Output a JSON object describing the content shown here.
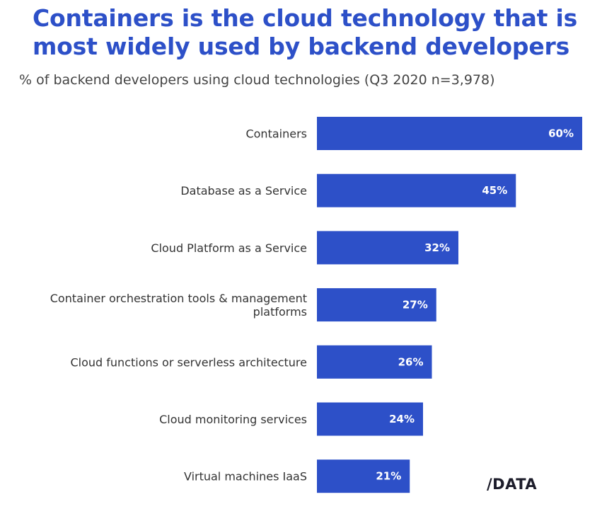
{
  "chart_data": {
    "type": "bar",
    "orientation": "horizontal",
    "title": "Containers is the cloud technology that is most widely used by backend developers",
    "subtitle": "% of backend developers using cloud technologies (Q3 2020 n=3,978)",
    "categories": [
      [
        "Containers"
      ],
      [
        "Database as a Service"
      ],
      [
        "Cloud Platform as a Service"
      ],
      [
        "Container orchestration tools & management",
        "platforms"
      ],
      [
        "Cloud functions or serverless architecture"
      ],
      [
        "Cloud monitoring services"
      ],
      [
        "Virtual machines IaaS"
      ]
    ],
    "values": [
      60,
      45,
      32,
      27,
      26,
      24,
      21
    ],
    "value_labels": [
      "60%",
      "45%",
      "32%",
      "27%",
      "26%",
      "24%",
      "21%"
    ],
    "xlim": [
      0,
      60
    ],
    "grid": false,
    "legend": "none",
    "bar_color": "#2d50c8"
  },
  "logo": {
    "text": "/DATA"
  }
}
